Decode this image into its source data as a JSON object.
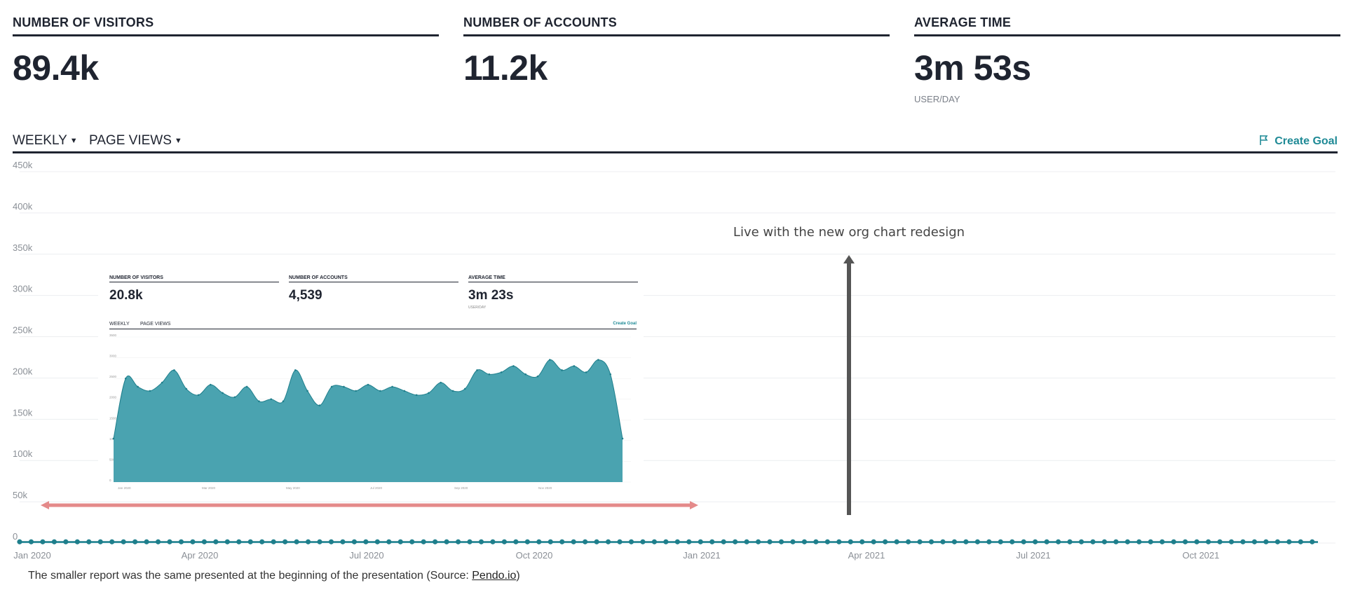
{
  "metrics": [
    {
      "label": "NUMBER OF VISITORS",
      "value": "89.4k",
      "sub": ""
    },
    {
      "label": "NUMBER OF ACCOUNTS",
      "value": "11.2k",
      "sub": ""
    },
    {
      "label": "AVERAGE TIME",
      "value": "3m 53s",
      "sub": "USER/DAY"
    }
  ],
  "toolbar": {
    "period": "WEEKLY",
    "measure": "PAGE VIEWS",
    "create_goal": "Create Goal"
  },
  "annotation": "Live with the new org chart redesign",
  "caption": {
    "text": "The smaller report was the same presented at the beginning of the presentation (Source: ",
    "link": "Pendo.io",
    "end": ")"
  },
  "colors": {
    "fill": "#4aa3b0",
    "line": "#1f7f8c",
    "accent": "#1f8a96",
    "range": "#e48a8a",
    "arrow": "#555555"
  },
  "chart_data": [
    {
      "type": "area",
      "y_ticks": [
        "0",
        "50k",
        "100k",
        "150k",
        "200k",
        "250k",
        "300k",
        "350k",
        "400k",
        "450k"
      ],
      "ylim": [
        0,
        450000
      ],
      "x_ticks": [
        "Jan 2020",
        "Apr 2020",
        "Jul 2020",
        "Oct 2020",
        "Jan 2021",
        "Apr 2021",
        "Jul 2021",
        "Oct 2021"
      ],
      "grid": true,
      "series": [
        {
          "values": [
            1500,
            1500,
            1500,
            1500,
            1500,
            1500,
            1500,
            1500,
            1500,
            1500,
            1500,
            1500,
            1500,
            1500,
            1500,
            1500,
            1500,
            1500,
            1500,
            1500,
            1500,
            1500,
            1500,
            1500,
            1500,
            1500,
            1500,
            1500,
            1500,
            1500,
            1500,
            1500,
            1500,
            1500,
            1500,
            1500,
            1500,
            1500,
            1500,
            1500,
            1500,
            1500,
            1500,
            1500,
            1500,
            1500,
            1500,
            1500,
            1500,
            1500,
            1500,
            1500,
            1500,
            1500,
            1500,
            1500,
            1500,
            1500,
            1500,
            1500,
            1500,
            1500,
            1500,
            1500,
            1500,
            1500,
            1500,
            1500,
            1500,
            1500,
            1500,
            1500,
            1500,
            1500,
            1500,
            1500,
            1500,
            1500,
            1500,
            1500,
            1500,
            1500,
            1500,
            1500,
            1500,
            1500,
            1500,
            1500,
            1500,
            1500,
            1500,
            1500,
            1500,
            1500,
            1500,
            1500,
            1500,
            1500,
            1500,
            1500,
            1500,
            1500,
            1500,
            1500,
            1500,
            1500,
            1500,
            1500,
            1500,
            1500,
            1500,
            1500,
            1500,
            1500,
            1500,
            1500,
            1500,
            1500,
            1500,
            1500,
            1500,
            1500,
            1500,
            1500,
            1500,
            1500,
            1500,
            1500,
            1500,
            1500,
            1500,
            1500,
            1500,
            1500,
            1500,
            1500,
            1500,
            1500,
            1500,
            1500,
            1500,
            1500,
            1500,
            1500,
            1500,
            1500,
            1500,
            1500,
            1500,
            1500,
            1500,
            1500,
            1500,
            1500,
            1500,
            1500,
            1500,
            1500,
            1500,
            1500,
            1500,
            1500,
            1500,
            1500,
            1500,
            1500,
            1500,
            1500,
            1500,
            1500,
            1500,
            1500,
            1500,
            1500,
            1500,
            1500,
            1500,
            1500,
            1500,
            1500,
            1500,
            1500,
            1500,
            1500,
            1500,
            1500,
            1500,
            1500,
            1500,
            1500,
            1500,
            1500,
            1500,
            1500,
            1500,
            1500,
            1500,
            1500,
            1500,
            1500,
            1500,
            1500,
            1500,
            1500,
            1500,
            1500,
            1500,
            1500,
            1500,
            1500,
            1500,
            1500,
            1500,
            1500,
            1500,
            1500,
            1500,
            1500,
            1500,
            1500,
            1500,
            1500,
            1500,
            1500,
            1500,
            1500
          ]
        }
      ]
    },
    {
      "type": "area",
      "inset": true,
      "metrics": [
        {
          "label": "NUMBER OF VISITORS",
          "value": "20.8k",
          "sub": ""
        },
        {
          "label": "NUMBER OF ACCOUNTS",
          "value": "4,539",
          "sub": ""
        },
        {
          "label": "AVERAGE TIME",
          "value": "3m 23s",
          "sub": "USER/DAY"
        }
      ],
      "toolbar": {
        "period": "WEEKLY",
        "measure": "PAGE VIEWS",
        "create_goal": "Create Goal"
      },
      "y_ticks": [
        "0",
        "500",
        "1000",
        "1500",
        "2000",
        "2500",
        "3000",
        "3500"
      ],
      "ylim": [
        0,
        3500
      ],
      "x_ticks": [
        "Jan 2020",
        "Mar 2020",
        "May 2020",
        "Jul 2020",
        "Sep 2020",
        "Nov 2020"
      ],
      "grid": true,
      "series": [
        {
          "values": [
            1050,
            2500,
            2300,
            2200,
            2400,
            2700,
            2250,
            2100,
            2350,
            2150,
            2050,
            2300,
            1950,
            2000,
            1950,
            2700,
            2200,
            1850,
            2300,
            2300,
            2200,
            2350,
            2200,
            2300,
            2200,
            2100,
            2150,
            2400,
            2200,
            2250,
            2700,
            2600,
            2650,
            2800,
            2600,
            2550,
            2950,
            2700,
            2800,
            2650,
            2950,
            2600,
            1050
          ]
        }
      ]
    }
  ]
}
